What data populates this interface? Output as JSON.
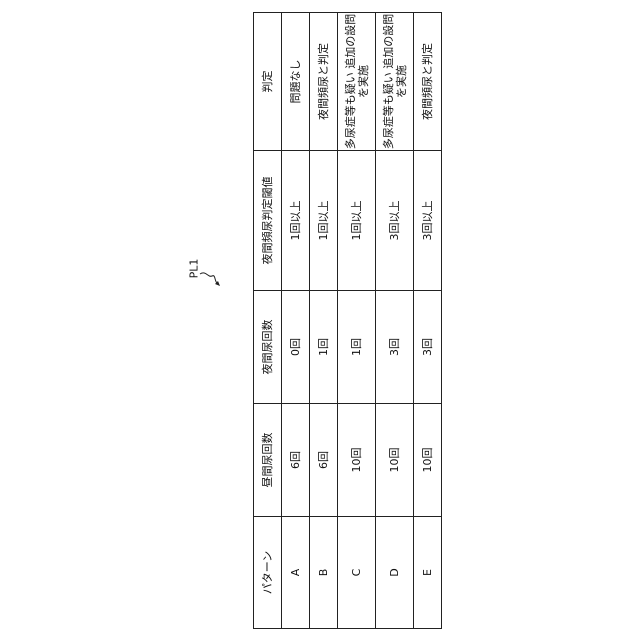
{
  "figure_label": "PL1",
  "table": {
    "headers": [
      "パターン",
      "昼間尿回数",
      "夜間尿回数",
      "夜間頻尿判定閾値",
      "判定"
    ],
    "rows": [
      [
        "A",
        "6回",
        "0回",
        "1回以上",
        "問題なし"
      ],
      [
        "B",
        "6回",
        "1回",
        "1回以上",
        "夜間頻尿と判定"
      ],
      [
        "C",
        "10回",
        "1回",
        "1回以上",
        "多尿症等も疑い 追加の設問を実施"
      ],
      [
        "D",
        "10回",
        "3回",
        "3回以上",
        "多尿症等も疑い 追加の設問を実施"
      ],
      [
        "E",
        "10回",
        "3回",
        "3回以上",
        "夜間頻尿と判定"
      ]
    ]
  }
}
